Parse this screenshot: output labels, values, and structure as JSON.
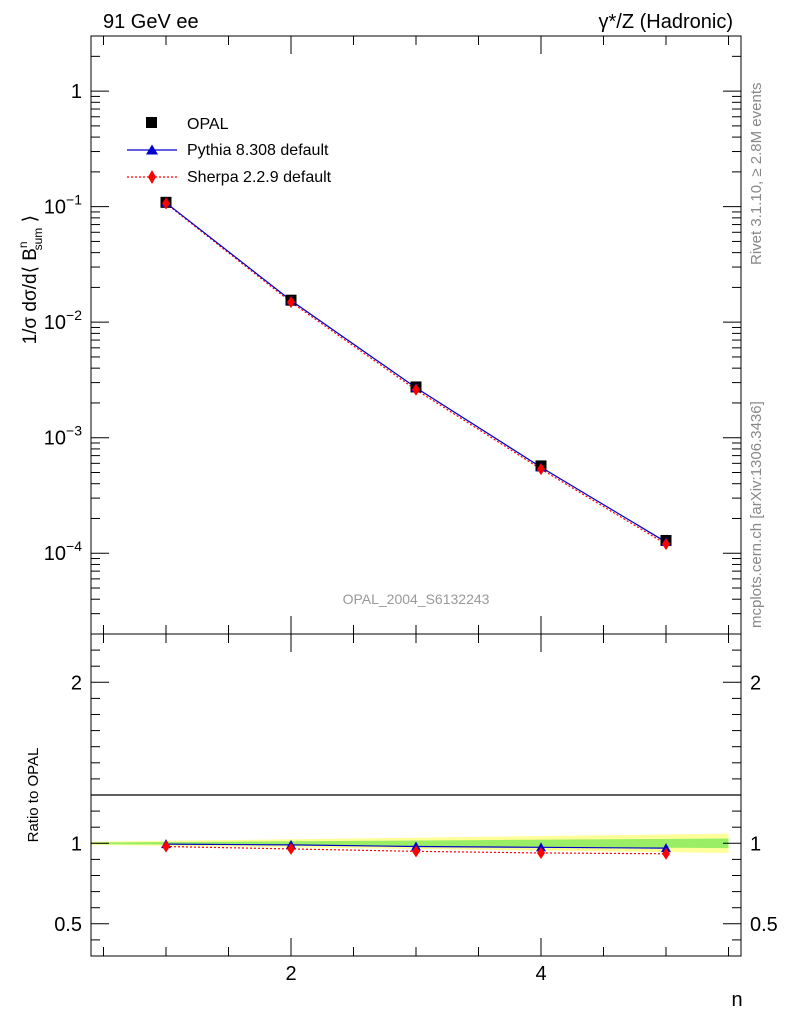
{
  "header": {
    "left_title": "91 GeV ee",
    "right_title": "γ*/Z (Hadronic)"
  },
  "side_labels": {
    "rivet": "Rivet 3.1.10, ≥ 2.8M events",
    "mcplots": "mcplots.cern.ch [arXiv:1306.3436]"
  },
  "watermark": "OPAL_2004_S6132243",
  "colors": {
    "opal": "#000000",
    "pythia": "#0000cc",
    "sherpa": "#ff0000",
    "band_outer": "#ffff99",
    "band_inner": "#99ee66"
  },
  "chart_data": [
    {
      "type": "scatter",
      "panel": "main",
      "y_scale": "log",
      "ylabel": "1/σ dσ/d⟨ B_sum^n ⟩",
      "xlim": [
        0.4,
        5.6
      ],
      "ylim": [
        2e-05,
        3
      ],
      "y_tick_labels": [
        "1",
        "10^-1",
        "10^-2",
        "10^-3",
        "10^-4"
      ],
      "legend_position": "top-left",
      "x": [
        1,
        2,
        3,
        4,
        5
      ],
      "series": [
        {
          "name": "OPAL",
          "marker": "square",
          "values": [
            0.109,
            0.0155,
            0.00275,
            0.00057,
            0.000129
          ]
        },
        {
          "name": "Pythia 8.308 default",
          "marker": "triangle",
          "line": "solid",
          "values": [
            0.108,
            0.0154,
            0.00271,
            0.000555,
            0.000125
          ]
        },
        {
          "name": "Sherpa 2.2.9 default",
          "marker": "diamond",
          "line": "dotted",
          "values": [
            0.1065,
            0.0149,
            0.0026,
            0.000535,
            0.00012
          ]
        }
      ]
    },
    {
      "type": "line",
      "panel": "ratio",
      "xlabel": "n",
      "ylabel": "Ratio to OPAL",
      "xlim": [
        0.4,
        5.6
      ],
      "ylim": [
        0.3,
        2.3
      ],
      "x_tick_labels": [
        "2",
        "4"
      ],
      "y_tick_labels": [
        "0.5",
        "1",
        "2"
      ],
      "x": [
        1,
        2,
        3,
        4,
        5
      ],
      "series": [
        {
          "name": "Pythia 8.308 default",
          "values": [
            0.995,
            0.99,
            0.98,
            0.975,
            0.97
          ]
        },
        {
          "name": "Sherpa 2.2.9 default",
          "values": [
            0.98,
            0.965,
            0.95,
            0.94,
            0.935
          ]
        }
      ],
      "uncertainty_band": {
        "x": [
          0.4,
          1.5,
          2.5,
          3.5,
          4.5,
          5.5
        ],
        "outer": [
          0.01,
          0.02,
          0.03,
          0.04,
          0.05,
          0.06
        ],
        "inner": [
          0.005,
          0.01,
          0.015,
          0.02,
          0.025,
          0.03
        ]
      }
    }
  ]
}
